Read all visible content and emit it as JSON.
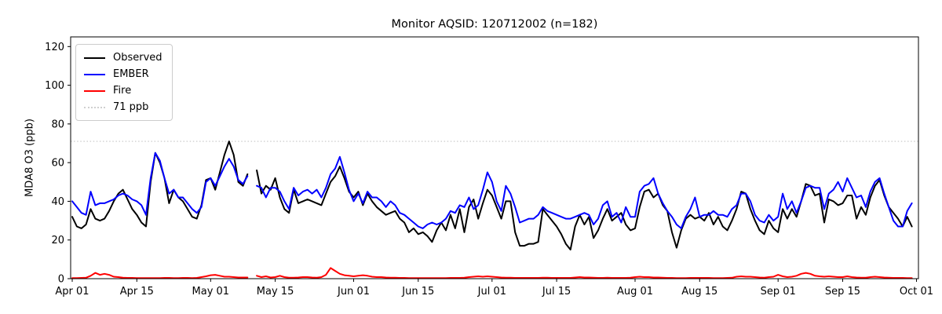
{
  "title": "Monitor AQSID: 120712002 (n=182)",
  "ylabel": "MDA8 O3 (ppb)",
  "legend": {
    "items": [
      {
        "label": "Observed",
        "color": "#000000",
        "style": "solid"
      },
      {
        "label": "EMBER",
        "color": "#0000ff",
        "style": "solid"
      },
      {
        "label": "Fire",
        "color": "#ff0000",
        "style": "solid"
      },
      {
        "label": "71 ppb",
        "color": "#cfcfcf",
        "style": "dotted"
      }
    ]
  },
  "chart_data": {
    "type": "line",
    "title": "Monitor AQSID: 120712002 (n=182)",
    "xlabel": "",
    "ylabel": "MDA8 O3 (ppb)",
    "grid": false,
    "legend_position": "upper left",
    "x_axis": {
      "unit": "daily, days since Apr 01",
      "tick_labels": [
        "Apr 01",
        "Apr 15",
        "May 01",
        "May 15",
        "Jun 01",
        "Jun 15",
        "Jul 01",
        "Jul 15",
        "Aug 01",
        "Aug 15",
        "Sep 01",
        "Sep 15",
        "Oct 01"
      ],
      "tick_day_offsets": [
        0,
        14,
        30,
        44,
        61,
        75,
        91,
        105,
        122,
        136,
        153,
        167,
        183
      ]
    },
    "y_axis": {
      "ticks": [
        0,
        20,
        40,
        60,
        80,
        100,
        120
      ],
      "lim": [
        0,
        125
      ]
    },
    "threshold": {
      "value": 71,
      "label": "71 ppb",
      "color": "#cfcfcf",
      "style": "dotted"
    },
    "n_points": 182,
    "missing_day_offset": 39,
    "note": "values are MDA8 O3 in ppb for each day Apr 01-Sep 30; array index = days since Apr 01; null = missing day (May 10)",
    "series": [
      {
        "name": "Observed",
        "color": "#000000",
        "values": [
          32,
          27,
          26,
          28,
          36,
          31,
          30,
          31,
          35,
          40,
          44,
          46,
          41,
          36,
          33,
          29,
          27,
          50,
          65,
          60,
          52,
          39,
          46,
          42,
          40,
          36,
          32,
          31,
          38,
          51,
          52,
          46,
          55,
          64,
          71,
          64,
          50,
          48,
          54,
          null,
          56,
          44,
          48,
          46,
          52,
          42,
          36,
          34,
          46,
          39,
          40,
          41,
          40,
          39,
          38,
          44,
          50,
          53,
          58,
          52,
          45,
          42,
          45,
          38,
          44,
          40,
          37,
          35,
          33,
          34,
          35,
          31,
          29,
          24,
          26,
          23,
          24,
          22,
          19,
          25,
          29,
          25,
          33,
          26,
          36,
          24,
          37,
          41,
          31,
          39,
          46,
          43,
          37,
          31,
          40,
          40,
          24,
          17,
          17,
          18,
          18,
          19,
          36,
          33,
          30,
          27,
          23,
          18,
          15,
          27,
          33,
          28,
          32,
          21,
          25,
          31,
          36,
          30,
          32,
          34,
          28,
          25,
          26,
          37,
          45,
          46,
          42,
          44,
          38,
          35,
          24,
          16,
          25,
          31,
          33,
          31,
          32,
          30,
          34,
          28,
          32,
          27,
          25,
          30,
          36,
          45,
          44,
          36,
          30,
          25,
          23,
          30,
          26,
          24,
          36,
          31,
          36,
          32,
          40,
          49,
          48,
          43,
          44,
          29,
          41,
          40,
          38,
          39,
          43,
          43,
          31,
          37,
          33,
          42,
          48,
          51,
          43,
          37,
          34,
          31,
          27,
          32,
          27
        ]
      },
      {
        "name": "EMBER",
        "color": "#0000ff",
        "values": [
          40,
          37,
          34,
          33,
          45,
          38,
          39,
          39,
          40,
          41,
          43,
          44,
          43,
          41,
          40,
          38,
          33,
          52,
          65,
          61,
          52,
          44,
          46,
          42,
          42,
          39,
          36,
          34,
          37,
          50,
          52,
          48,
          53,
          58,
          62,
          58,
          51,
          49,
          53,
          null,
          48,
          47,
          42,
          47,
          47,
          45,
          40,
          36,
          47,
          43,
          45,
          46,
          44,
          46,
          42,
          47,
          54,
          57,
          63,
          55,
          46,
          40,
          44,
          39,
          45,
          42,
          42,
          40,
          37,
          40,
          38,
          34,
          33,
          31,
          29,
          27,
          26,
          28,
          29,
          28,
          29,
          31,
          35,
          34,
          38,
          37,
          42,
          36,
          38,
          46,
          55,
          50,
          40,
          35,
          48,
          44,
          37,
          29,
          30,
          31,
          31,
          33,
          37,
          35,
          34,
          33,
          32,
          31,
          31,
          32,
          33,
          34,
          33,
          28,
          31,
          38,
          40,
          32,
          34,
          29,
          37,
          32,
          32,
          45,
          48,
          49,
          52,
          44,
          39,
          35,
          32,
          28,
          26,
          32,
          36,
          42,
          32,
          33,
          33,
          35,
          33,
          33,
          32,
          36,
          38,
          44,
          44,
          40,
          33,
          30,
          29,
          33,
          30,
          32,
          44,
          36,
          40,
          34,
          40,
          47,
          48,
          47,
          47,
          36,
          44,
          46,
          50,
          45,
          52,
          47,
          42,
          43,
          37,
          45,
          50,
          52,
          44,
          37,
          30,
          27,
          27,
          35,
          39
        ]
      },
      {
        "name": "Fire",
        "color": "#ff0000",
        "values": [
          0.3,
          0.3,
          0.4,
          0.5,
          1.5,
          3,
          2,
          2.5,
          2,
          1,
          0.8,
          0.5,
          0.4,
          0.4,
          0.3,
          0.3,
          0.3,
          0.3,
          0.3,
          0.3,
          0.4,
          0.4,
          0.3,
          0.3,
          0.4,
          0.4,
          0.3,
          0.4,
          0.8,
          1.2,
          1.8,
          2,
          1.5,
          1,
          1,
          0.8,
          0.6,
          0.6,
          0.6,
          null,
          1.5,
          0.8,
          1.2,
          0.6,
          0.8,
          1.5,
          0.8,
          0.5,
          0.5,
          0.6,
          0.8,
          0.8,
          0.6,
          0.5,
          0.8,
          2,
          5.5,
          4,
          2.5,
          1.8,
          1.5,
          1.2,
          1.5,
          1.8,
          1.5,
          1,
          0.8,
          0.8,
          0.6,
          0.5,
          0.5,
          0.4,
          0.4,
          0.3,
          0.3,
          0.3,
          0.3,
          0.3,
          0.3,
          0.3,
          0.3,
          0.3,
          0.4,
          0.4,
          0.4,
          0.5,
          0.8,
          1,
          1.2,
          1,
          1.2,
          1,
          0.8,
          0.6,
          0.5,
          0.5,
          0.4,
          0.4,
          0.4,
          0.4,
          0.4,
          0.4,
          0.5,
          0.5,
          0.4,
          0.4,
          0.4,
          0.4,
          0.4,
          0.6,
          0.8,
          0.6,
          0.6,
          0.5,
          0.4,
          0.4,
          0.5,
          0.4,
          0.4,
          0.4,
          0.4,
          0.5,
          0.8,
          1,
          0.8,
          0.8,
          0.6,
          0.6,
          0.5,
          0.4,
          0.4,
          0.3,
          0.3,
          0.3,
          0.4,
          0.4,
          0.4,
          0.4,
          0.4,
          0.3,
          0.3,
          0.3,
          0.4,
          0.5,
          1,
          1.2,
          1,
          1,
          0.8,
          0.6,
          0.5,
          0.8,
          1,
          2,
          1.2,
          0.8,
          1,
          1.5,
          2.5,
          3,
          2.5,
          1.5,
          1.2,
          1,
          1.2,
          1,
          0.8,
          0.8,
          1.2,
          0.8,
          0.6,
          0.5,
          0.5,
          0.8,
          1,
          0.8,
          0.6,
          0.5,
          0.4,
          0.4,
          0.4,
          0.3,
          0.3
        ]
      }
    ]
  }
}
